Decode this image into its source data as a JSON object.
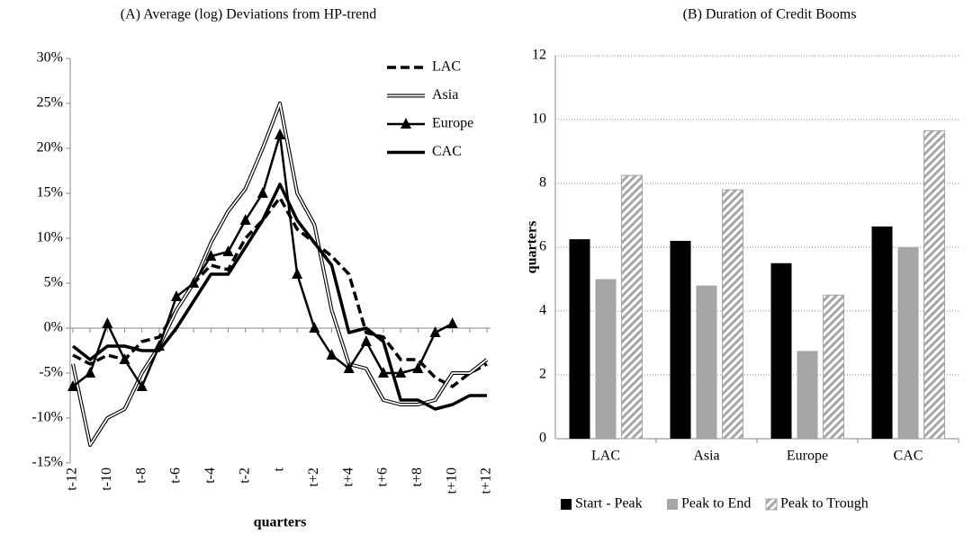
{
  "chart_data": [
    {
      "type": "line",
      "title": "(A) Average (log) Deviations from HP-trend",
      "x_label": "quarters",
      "categories": [
        "t-12",
        null,
        "t-10",
        null,
        "t-8",
        null,
        "t-6",
        null,
        "t-4",
        null,
        "t-2",
        null,
        "t",
        null,
        "t+2",
        null,
        "t+4",
        null,
        "t+6",
        null,
        "t+8",
        null,
        "t+10",
        null,
        "t+12"
      ],
      "ylim": [
        -15,
        30
      ],
      "yticks": [
        {
          "value": -15,
          "label": "-15%"
        },
        {
          "value": -10,
          "label": "-10%"
        },
        {
          "value": -5,
          "label": "-5%"
        },
        {
          "value": 0,
          "label": "0%"
        },
        {
          "value": 5,
          "label": "5%"
        },
        {
          "value": 10,
          "label": "10%"
        },
        {
          "value": 15,
          "label": "15%"
        },
        {
          "value": 20,
          "label": "20%"
        },
        {
          "value": 25,
          "label": "25%"
        },
        {
          "value": 30,
          "label": "30%"
        }
      ],
      "legend": "top-right",
      "series": [
        {
          "name": "LAC",
          "color": "#000000",
          "line_style": "dashed",
          "values": [
            -3,
            -4,
            -3,
            -3.5,
            -1.5,
            -1,
            2,
            5,
            7,
            6.5,
            10,
            12,
            14.5,
            11,
            9.5,
            8,
            6,
            -0.5,
            -1,
            -3.5,
            -3.5,
            -5.5,
            -6.5,
            -5,
            -4
          ]
        },
        {
          "name": "Asia",
          "color": "#000000",
          "line_style": "double",
          "values": [
            -4,
            -13,
            -10,
            -9,
            -5,
            -2,
            2,
            5,
            9.5,
            13,
            15.5,
            20,
            25,
            15,
            11.5,
            2,
            -4,
            -4.5,
            -8,
            -8.5,
            -8.5,
            -8,
            -5,
            -5,
            -3.5
          ]
        },
        {
          "name": "Europe",
          "color": "#000000",
          "line_style": "solid",
          "marker": "triangle",
          "values": [
            -6.5,
            -5,
            0.5,
            -3.5,
            -6.5,
            -2,
            3.5,
            5,
            8,
            8.5,
            12,
            15,
            21.5,
            6,
            0,
            -3,
            -4.5,
            -1.5,
            -5,
            -5,
            -4.5,
            -0.5,
            0.5,
            null,
            null
          ]
        },
        {
          "name": "CAC",
          "color": "#000000",
          "line_style": "thick",
          "values": [
            -2,
            -3.5,
            -2,
            -2,
            -2.5,
            -2.5,
            0,
            3,
            6,
            6,
            9,
            12,
            16,
            12,
            9.5,
            7,
            -0.5,
            0,
            -1.5,
            -8,
            -8,
            -9,
            -8.5,
            -7.5,
            -7.5
          ]
        }
      ]
    },
    {
      "type": "bar",
      "title": "(B) Duration of Credit Booms",
      "y_label": "quarters",
      "categories": [
        "LAC",
        "Asia",
        "Europe",
        "CAC"
      ],
      "ylim": [
        0,
        12
      ],
      "yticks": [
        0,
        2,
        4,
        6,
        8,
        10,
        12
      ],
      "grid": true,
      "legend": "bottom",
      "series": [
        {
          "name": "Start - Peak",
          "color": "#000000",
          "values": [
            6.25,
            6.2,
            5.5,
            6.65
          ]
        },
        {
          "name": "Peak to End",
          "color": "#a6a6a6",
          "values": [
            5,
            4.8,
            2.75,
            6
          ]
        },
        {
          "name": "Peak to Trough",
          "color": "#ffffff",
          "pattern": "hatch",
          "values": [
            8.25,
            7.8,
            4.5,
            9.65
          ]
        }
      ]
    }
  ]
}
